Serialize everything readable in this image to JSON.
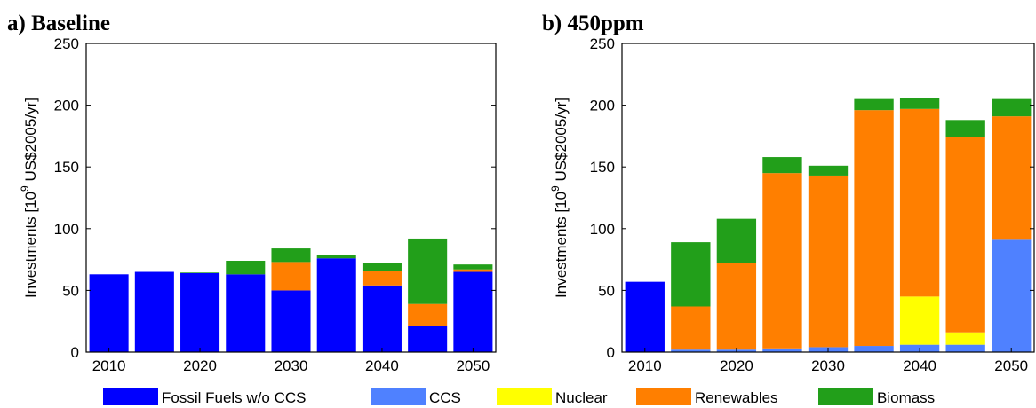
{
  "chart_data": [
    {
      "type": "bar",
      "stacked": true,
      "title": "a) Baseline",
      "ylabel": "Investments [10^9 US$2005/yr]",
      "ylim": [
        0,
        250
      ],
      "yticks": [
        0,
        50,
        100,
        150,
        200,
        250
      ],
      "xticks": [
        "2010",
        "2020",
        "2030",
        "2040",
        "2050"
      ],
      "categories": [
        "2010",
        "2015",
        "2020",
        "2025",
        "2030",
        "2035",
        "2040",
        "2045",
        "2050"
      ],
      "series": [
        {
          "name": "Fossil Fuels w/o CCS",
          "color": "#0000ff",
          "values": [
            63,
            65,
            64,
            63,
            50,
            76,
            54,
            21,
            65
          ]
        },
        {
          "name": "CCS",
          "color": "#4f81ff",
          "values": [
            0,
            0,
            0,
            0,
            0,
            0,
            0,
            0,
            0
          ]
        },
        {
          "name": "Nuclear",
          "color": "#ffff00",
          "values": [
            0,
            0,
            0,
            0,
            0,
            0,
            0,
            0,
            0
          ]
        },
        {
          "name": "Renewables",
          "color": "#ff7f00",
          "values": [
            0,
            0,
            0,
            0,
            23,
            0,
            12,
            18,
            2
          ]
        },
        {
          "name": "Biomass",
          "color": "#229f1a",
          "values": [
            0,
            0,
            0.5,
            11,
            11,
            3,
            6,
            53,
            4
          ]
        }
      ]
    },
    {
      "type": "bar",
      "stacked": true,
      "title": "b) 450ppm",
      "ylabel": "Investments [10^9 US$2005/yr]",
      "ylim": [
        0,
        250
      ],
      "yticks": [
        0,
        50,
        100,
        150,
        200,
        250
      ],
      "xticks": [
        "2010",
        "2020",
        "2030",
        "2040",
        "2050"
      ],
      "categories": [
        "2010",
        "2015",
        "2020",
        "2025",
        "2030",
        "2035",
        "2040",
        "2045",
        "2050"
      ],
      "series": [
        {
          "name": "Fossil Fuels w/o CCS",
          "color": "#0000ff",
          "values": [
            57,
            0,
            0,
            0,
            0,
            0,
            0,
            0,
            0
          ]
        },
        {
          "name": "CCS",
          "color": "#4f81ff",
          "values": [
            0,
            2,
            2,
            3,
            4,
            5,
            6,
            6,
            91
          ]
        },
        {
          "name": "Nuclear",
          "color": "#ffff00",
          "values": [
            0,
            0,
            0,
            0,
            0,
            0,
            39,
            10,
            0
          ]
        },
        {
          "name": "Renewables",
          "color": "#ff7f00",
          "values": [
            0,
            35,
            70,
            142,
            139,
            191,
            152,
            158,
            100
          ]
        },
        {
          "name": "Biomass",
          "color": "#229f1a",
          "values": [
            0,
            52,
            36,
            13,
            8,
            9,
            9,
            14,
            14
          ]
        }
      ]
    }
  ],
  "legend": [
    {
      "label": "Fossil Fuels w/o CCS",
      "color": "#0000ff"
    },
    {
      "label": "CCS",
      "color": "#4f81ff"
    },
    {
      "label": "Nuclear",
      "color": "#ffff00"
    },
    {
      "label": "Renewables",
      "color": "#ff7f00"
    },
    {
      "label": "Biomass",
      "color": "#229f1a"
    }
  ]
}
